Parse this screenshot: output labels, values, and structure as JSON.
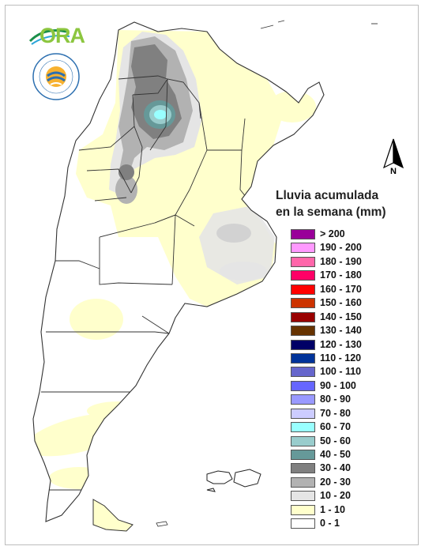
{
  "logos": {
    "ora_text": "ORA",
    "smn_name": "SERVICIO METEOROLÓGICO NACIONAL",
    "smn_country": "ARGENTINA"
  },
  "north_label": "N",
  "legend": {
    "title_line1": "Lluvia acumulada",
    "title_line2": "en la semana (mm)",
    "items": [
      {
        "label": "> 200",
        "color": "#990099"
      },
      {
        "label": "190 - 200",
        "color": "#ff99ff"
      },
      {
        "label": "180 - 190",
        "color": "#ff66aa"
      },
      {
        "label": "170 - 180",
        "color": "#ff0066"
      },
      {
        "label": "160 - 170",
        "color": "#ff0000"
      },
      {
        "label": "150 - 160",
        "color": "#cc3300"
      },
      {
        "label": "140 - 150",
        "color": "#990000"
      },
      {
        "label": "130 - 140",
        "color": "#663300"
      },
      {
        "label": "120 - 130",
        "color": "#000066"
      },
      {
        "label": "110 - 120",
        "color": "#003399"
      },
      {
        "label": "100 - 110",
        "color": "#6666cc"
      },
      {
        "label": "90 - 100",
        "color": "#6666ff"
      },
      {
        "label": "80 - 90",
        "color": "#9999ff"
      },
      {
        "label": "70 - 80",
        "color": "#ccccff"
      },
      {
        "label": "60 - 70",
        "color": "#99ffff"
      },
      {
        "label": "50 - 60",
        "color": "#99cccc"
      },
      {
        "label": "40 - 50",
        "color": "#669999"
      },
      {
        "label": "30 - 40",
        "color": "#808080"
      },
      {
        "label": "20 - 30",
        "color": "#b2b2b2"
      },
      {
        "label": "10 - 20",
        "color": "#e5e5e5"
      },
      {
        "label": "1 - 10",
        "color": "#ffffcc"
      },
      {
        "label": "0 - 1",
        "color": "#ffffff"
      }
    ]
  }
}
